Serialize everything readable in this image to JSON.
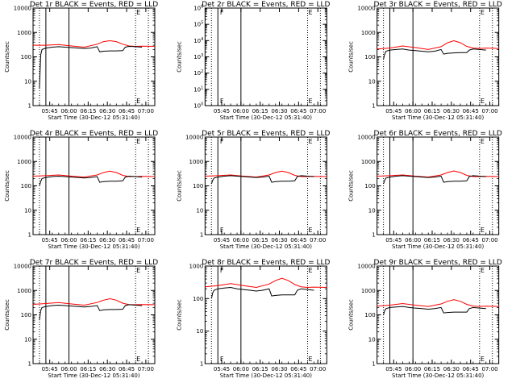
{
  "figure": {
    "xlabel": "Start Time (30-Dec-12 05:31:40)",
    "ylabel": "Counts/sec",
    "colors": {
      "events": "#000000",
      "lld": "#ff0000",
      "axis": "#000000"
    }
  },
  "chart_data": [
    {
      "type": "line",
      "title": "Det 1r BLACK = Events, RED = LLD",
      "xlabel": "Start Time (30-Dec-12 05:31:40)",
      "ylabel": "Counts/sec",
      "xrange_min": [
        0,
        95
      ],
      "ylog": true,
      "ylim": [
        1,
        10000
      ],
      "yticks": [
        "1",
        "10",
        "100",
        "1000",
        "10000"
      ],
      "xticks": [
        "05:45",
        "06:00",
        "06:15",
        "06:30",
        "06:45",
        "07:00"
      ],
      "xtick_min": [
        13,
        28,
        43,
        58,
        73,
        88
      ],
      "vlines_solid": [
        10,
        28
      ],
      "vlines_dotted": [
        5,
        80,
        90
      ],
      "flags": [
        {
          "text": "E",
          "x": 80
        }
      ],
      "series": [
        {
          "color": "#ff0000",
          "x": [
            0,
            10,
            20,
            30,
            40,
            50,
            55,
            60,
            65,
            70,
            75,
            80,
            85,
            95
          ],
          "values": [
            300,
            300,
            320,
            280,
            250,
            330,
            420,
            460,
            420,
            330,
            280,
            270,
            275,
            270
          ]
        },
        {
          "color": "#000000",
          "x": [
            5,
            6,
            7,
            10,
            15,
            20,
            25,
            30,
            35,
            40,
            45,
            50,
            52,
            55,
            60,
            65,
            70,
            72,
            75,
            80,
            85
          ],
          "values": [
            5,
            120,
            200,
            230,
            250,
            260,
            250,
            240,
            230,
            220,
            230,
            260,
            160,
            170,
            175,
            175,
            180,
            250,
            270,
            260,
            250
          ]
        }
      ]
    },
    {
      "type": "line",
      "title": "Det 2r BLACK = Events, RED = LLD",
      "xlabel": "Start Time (30-Dec-12 05:31:40)",
      "ylabel": "Counts/sec",
      "xrange_min": [
        0,
        95
      ],
      "ylog": true,
      "ylim": [
        1,
        1000000
      ],
      "yticks": [
        "10^0",
        "10^1",
        "10^2",
        "10^3",
        "10^4",
        "10^5",
        "10^6"
      ],
      "xticks": [
        "05:45",
        "06:00",
        "06:15",
        "06:30",
        "06:45",
        "07:00"
      ],
      "xtick_min": [
        13,
        28,
        43,
        58,
        73,
        88
      ],
      "vlines_solid": [
        10,
        28
      ],
      "vlines_dotted": [
        5,
        80,
        90
      ],
      "flags": [
        {
          "text": "F",
          "x": 11
        },
        {
          "text": "E",
          "x": 80
        }
      ],
      "series": []
    },
    {
      "type": "line",
      "title": "Det 3r BLACK = Events, RED = LLD",
      "xlabel": "Start Time (30-Dec-12 05:31:40)",
      "ylabel": "Counts/sec",
      "xrange_min": [
        0,
        95
      ],
      "ylog": true,
      "ylim": [
        1,
        10000
      ],
      "yticks": [
        "1",
        "10",
        "100",
        "1000",
        "10000"
      ],
      "xticks": [
        "05:45",
        "06:00",
        "06:15",
        "06:30",
        "06:45",
        "07:00"
      ],
      "xtick_min": [
        13,
        28,
        43,
        58,
        73,
        88
      ],
      "vlines_solid": [
        10,
        28
      ],
      "vlines_dotted": [
        5,
        80,
        90
      ],
      "flags": [
        {
          "text": "E",
          "x": 80
        }
      ],
      "series": [
        {
          "color": "#ff0000",
          "x": [
            0,
            10,
            20,
            30,
            40,
            50,
            55,
            60,
            65,
            70,
            75,
            80,
            85,
            95
          ],
          "values": [
            210,
            230,
            280,
            240,
            200,
            260,
            380,
            460,
            380,
            270,
            230,
            220,
            230,
            220
          ]
        },
        {
          "color": "#000000",
          "x": [
            5,
            6,
            7,
            10,
            15,
            20,
            25,
            30,
            35,
            40,
            45,
            50,
            52,
            55,
            60,
            65,
            70,
            72,
            75,
            80,
            85
          ],
          "values": [
            80,
            130,
            170,
            190,
            200,
            210,
            190,
            180,
            170,
            160,
            170,
            200,
            130,
            140,
            145,
            150,
            150,
            190,
            210,
            200,
            190
          ]
        }
      ]
    },
    {
      "type": "line",
      "title": "Det 4r BLACK = Events, RED = LLD",
      "xlabel": "Start Time (30-Dec-12 05:31:40)",
      "ylabel": "Counts/sec",
      "xrange_min": [
        0,
        95
      ],
      "ylog": true,
      "ylim": [
        1,
        10000
      ],
      "yticks": [
        "1",
        "10",
        "100",
        "1000",
        "10000"
      ],
      "xticks": [
        "05:45",
        "06:00",
        "06:15",
        "06:30",
        "06:45",
        "07:00"
      ],
      "xtick_min": [
        13,
        28,
        43,
        58,
        73,
        88
      ],
      "vlines_solid": [
        10,
        28
      ],
      "vlines_dotted": [
        5,
        80,
        90
      ],
      "flags": [
        {
          "text": "E",
          "x": 80
        }
      ],
      "series": [
        {
          "color": "#ff0000",
          "x": [
            0,
            10,
            20,
            30,
            40,
            50,
            55,
            60,
            65,
            70,
            75,
            80,
            85,
            95
          ],
          "values": [
            250,
            260,
            280,
            250,
            230,
            280,
            350,
            400,
            350,
            270,
            240,
            240,
            245,
            240
          ]
        },
        {
          "color": "#000000",
          "x": [
            5,
            6,
            7,
            10,
            15,
            20,
            25,
            30,
            35,
            40,
            45,
            50,
            52,
            55,
            60,
            65,
            70,
            72,
            75,
            80,
            85
          ],
          "values": [
            100,
            150,
            200,
            220,
            240,
            250,
            240,
            230,
            220,
            210,
            220,
            240,
            140,
            150,
            155,
            155,
            160,
            230,
            250,
            240,
            230
          ]
        }
      ]
    },
    {
      "type": "line",
      "title": "Det 5r BLACK = Events, RED = LLD",
      "xlabel": "Start Time (30-Dec-12 05:31:40)",
      "ylabel": "Counts/sec",
      "xrange_min": [
        0,
        95
      ],
      "ylog": true,
      "ylim": [
        1,
        10000
      ],
      "yticks": [
        "1",
        "10",
        "100",
        "1000",
        "10000"
      ],
      "xticks": [
        "05:45",
        "06:00",
        "06:15",
        "06:30",
        "06:45",
        "07:00"
      ],
      "xtick_min": [
        13,
        28,
        43,
        58,
        73,
        88
      ],
      "vlines_solid": [
        10,
        28
      ],
      "vlines_dotted": [
        5,
        80,
        90
      ],
      "flags": [
        {
          "text": "F",
          "x": 11
        },
        {
          "text": "E",
          "x": 80
        }
      ],
      "series": [
        {
          "color": "#ff0000",
          "x": [
            0,
            10,
            20,
            30,
            40,
            50,
            55,
            60,
            65,
            70,
            75,
            80,
            85,
            95
          ],
          "values": [
            250,
            260,
            280,
            250,
            230,
            280,
            350,
            400,
            350,
            270,
            240,
            240,
            245,
            240
          ]
        },
        {
          "color": "#000000",
          "x": [
            5,
            6,
            7,
            10,
            15,
            20,
            25,
            30,
            35,
            40,
            45,
            50,
            52,
            55,
            60,
            65,
            70,
            72,
            75,
            80,
            85
          ],
          "values": [
            120,
            170,
            210,
            230,
            250,
            260,
            250,
            240,
            230,
            220,
            230,
            250,
            140,
            150,
            155,
            155,
            160,
            240,
            260,
            250,
            240
          ]
        }
      ]
    },
    {
      "type": "line",
      "title": "Det 6r BLACK = Events, RED = LLD",
      "xlabel": "Start Time (30-Dec-12 05:31:40)",
      "ylabel": "Counts/sec",
      "xrange_min": [
        0,
        95
      ],
      "ylog": true,
      "ylim": [
        1,
        10000
      ],
      "yticks": [
        "1",
        "10",
        "100",
        "1000",
        "10000"
      ],
      "xticks": [
        "05:45",
        "06:00",
        "06:15",
        "06:30",
        "06:45",
        "07:00"
      ],
      "xtick_min": [
        13,
        28,
        43,
        58,
        73,
        88
      ],
      "vlines_solid": [
        10,
        28
      ],
      "vlines_dotted": [
        5,
        80,
        90
      ],
      "flags": [
        {
          "text": "E",
          "x": 80
        }
      ],
      "series": [
        {
          "color": "#ff0000",
          "x": [
            0,
            10,
            20,
            30,
            40,
            50,
            55,
            60,
            65,
            70,
            75,
            80,
            85,
            95
          ],
          "values": [
            250,
            260,
            280,
            250,
            230,
            280,
            350,
            410,
            350,
            270,
            240,
            240,
            245,
            240
          ]
        },
        {
          "color": "#000000",
          "x": [
            5,
            6,
            7,
            10,
            15,
            20,
            25,
            30,
            35,
            40,
            45,
            50,
            52,
            55,
            60,
            65,
            70,
            72,
            75,
            80,
            85
          ],
          "values": [
            120,
            170,
            210,
            230,
            250,
            260,
            250,
            240,
            230,
            220,
            230,
            250,
            140,
            150,
            155,
            155,
            160,
            240,
            260,
            250,
            240
          ]
        }
      ]
    },
    {
      "type": "line",
      "title": "Det 7r BLACK = Events, RED = LLD",
      "xlabel": "Start Time (30-Dec-12 05:31:40)",
      "ylabel": "Counts/sec",
      "xrange_min": [
        0,
        95
      ],
      "ylog": true,
      "ylim": [
        1,
        10000
      ],
      "yticks": [
        "1",
        "10",
        "100",
        "1000",
        "10000"
      ],
      "xticks": [
        "05:45",
        "06:00",
        "06:15",
        "06:30",
        "06:45",
        "07:00"
      ],
      "xtick_min": [
        13,
        28,
        43,
        58,
        73,
        88
      ],
      "vlines_solid": [
        10,
        28
      ],
      "vlines_dotted": [
        5,
        80,
        90
      ],
      "flags": [
        {
          "text": "E",
          "x": 80
        }
      ],
      "series": [
        {
          "color": "#ff0000",
          "x": [
            0,
            10,
            20,
            30,
            40,
            50,
            55,
            60,
            65,
            70,
            75,
            80,
            85,
            95
          ],
          "values": [
            270,
            290,
            320,
            280,
            250,
            320,
            400,
            460,
            400,
            300,
            260,
            260,
            265,
            260
          ]
        },
        {
          "color": "#000000",
          "x": [
            5,
            6,
            7,
            10,
            15,
            20,
            25,
            30,
            35,
            40,
            45,
            50,
            52,
            55,
            60,
            65,
            70,
            72,
            75,
            80,
            85
          ],
          "values": [
            60,
            150,
            200,
            220,
            240,
            250,
            240,
            230,
            220,
            210,
            220,
            240,
            150,
            160,
            165,
            165,
            170,
            240,
            260,
            250,
            240
          ]
        }
      ]
    },
    {
      "type": "line",
      "title": "Det 8r BLACK = Events, RED = LLD",
      "xlabel": "Start Time (30-Dec-12 05:31:40)",
      "ylabel": "Counts/sec",
      "xrange_min": [
        0,
        95
      ],
      "ylog": true,
      "ylim": [
        1,
        1000
      ],
      "yticks": [
        "1",
        "10",
        "100",
        "1000"
      ],
      "xticks": [
        "05:45",
        "06:00",
        "06:15",
        "06:30",
        "06:45",
        "07:00"
      ],
      "xtick_min": [
        13,
        28,
        43,
        58,
        73,
        88
      ],
      "vlines_solid": [
        10,
        28
      ],
      "vlines_dotted": [
        5,
        80,
        90
      ],
      "flags": [
        {
          "text": "F",
          "x": 11
        },
        {
          "text": "E",
          "x": 80
        }
      ],
      "series": [
        {
          "color": "#ff0000",
          "x": [
            0,
            10,
            20,
            30,
            40,
            50,
            55,
            60,
            65,
            70,
            75,
            80,
            85,
            95
          ],
          "values": [
            230,
            250,
            290,
            250,
            220,
            280,
            360,
            420,
            360,
            270,
            230,
            220,
            225,
            220
          ]
        },
        {
          "color": "#000000",
          "x": [
            5,
            6,
            7,
            10,
            15,
            20,
            25,
            30,
            35,
            40,
            45,
            50,
            52,
            55,
            60,
            65,
            70,
            72,
            75,
            80,
            85
          ],
          "values": [
            100,
            150,
            180,
            200,
            210,
            220,
            200,
            190,
            180,
            170,
            180,
            200,
            120,
            125,
            130,
            130,
            130,
            180,
            200,
            190,
            180
          ]
        }
      ]
    },
    {
      "type": "line",
      "title": "Det 9r BLACK = Events, RED = LLD",
      "xlabel": "Start Time (30-Dec-12 05:31:40)",
      "ylabel": "Counts/sec",
      "xrange_min": [
        0,
        95
      ],
      "ylog": true,
      "ylim": [
        1,
        10000
      ],
      "yticks": [
        "1",
        "10",
        "100",
        "1000",
        "10000"
      ],
      "xticks": [
        "05:45",
        "06:00",
        "06:15",
        "06:30",
        "06:45",
        "07:00"
      ],
      "xtick_min": [
        13,
        28,
        43,
        58,
        73,
        88
      ],
      "vlines_solid": [
        10,
        28
      ],
      "vlines_dotted": [
        5,
        80,
        90
      ],
      "flags": [
        {
          "text": "E",
          "x": 80
        }
      ],
      "series": [
        {
          "color": "#ff0000",
          "x": [
            0,
            10,
            20,
            30,
            40,
            50,
            55,
            60,
            65,
            70,
            75,
            80,
            85,
            95
          ],
          "values": [
            230,
            250,
            290,
            250,
            220,
            280,
            360,
            420,
            360,
            270,
            230,
            220,
            225,
            220
          ]
        },
        {
          "color": "#000000",
          "x": [
            5,
            6,
            7,
            10,
            15,
            20,
            25,
            30,
            35,
            40,
            45,
            50,
            52,
            55,
            60,
            65,
            70,
            72,
            75,
            80,
            85
          ],
          "values": [
            100,
            150,
            180,
            200,
            210,
            220,
            200,
            190,
            180,
            170,
            180,
            200,
            120,
            125,
            130,
            130,
            130,
            180,
            200,
            190,
            180
          ]
        }
      ]
    }
  ]
}
